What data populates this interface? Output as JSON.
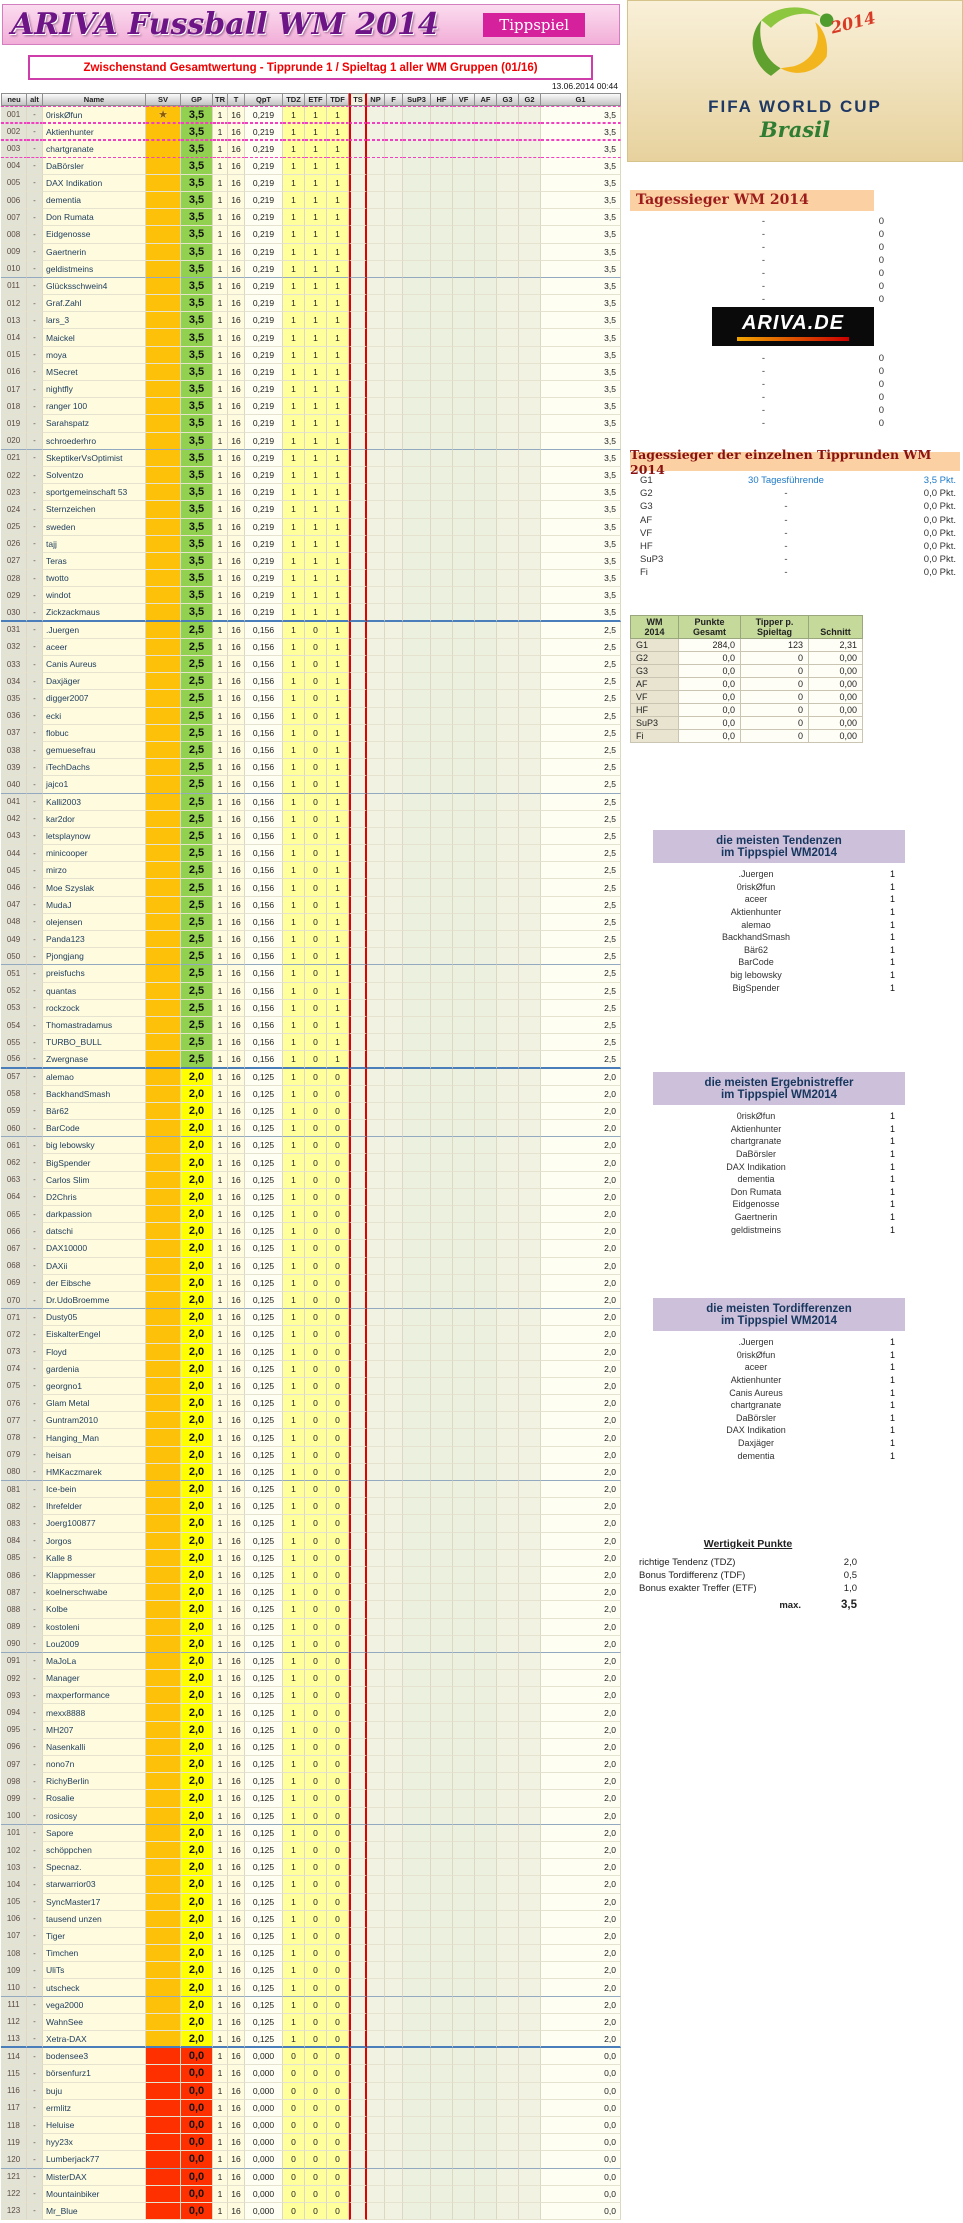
{
  "header": {
    "title": "ARIVA Fussball WM 2014",
    "badge": "Tippspiel",
    "subtitle": "Zwischenstand Gesamtwertung - Tipprunde 1 / Spieltag 1 aller WM Gruppen (01/16)",
    "timestamp": "13.06.2014 00:44"
  },
  "table": {
    "columns": [
      "neu",
      "alt",
      "Name",
      "SV",
      "GP",
      "TR",
      "T",
      "QpT",
      "TDZ",
      "ETF",
      "TDF",
      "TS",
      "NP",
      "F",
      "SuP3",
      "HF",
      "VF",
      "AF",
      "G3",
      "G2",
      "G1"
    ],
    "tiers": {
      "a": {
        "gp": "3,5",
        "tr": "1",
        "t": "16",
        "qpt": "0,219",
        "tdz": "1",
        "etf": "1",
        "tdf": "1",
        "g1": "3,5",
        "color": "#92d050"
      },
      "b": {
        "gp": "2,5",
        "tr": "1",
        "t": "16",
        "qpt": "0,156",
        "tdz": "1",
        "etf": "0",
        "tdf": "1",
        "g1": "2,5",
        "color": "#92d050"
      },
      "c": {
        "gp": "2,0",
        "tr": "1",
        "t": "16",
        "qpt": "0,125",
        "tdz": "1",
        "etf": "0",
        "tdf": "0",
        "g1": "2,0",
        "color": "#ffff00"
      },
      "d": {
        "gp": "0,0",
        "tr": "1",
        "t": "16",
        "qpt": "0,000",
        "tdz": "0",
        "etf": "0",
        "tdf": "0",
        "g1": "0,0",
        "color": "#ff3000"
      }
    },
    "rows": [
      [
        "001",
        "0riskØfun",
        "a",
        1
      ],
      [
        "002",
        "Aktienhunter",
        "a"
      ],
      [
        "003",
        "chartgranate",
        "a"
      ],
      [
        "004",
        "DaBörsler",
        "a"
      ],
      [
        "005",
        "DAX Indikation",
        "a"
      ],
      [
        "006",
        "dementia",
        "a"
      ],
      [
        "007",
        "Don Rumata",
        "a"
      ],
      [
        "008",
        "Eidgenosse",
        "a"
      ],
      [
        "009",
        "Gaertnerin",
        "a"
      ],
      [
        "010",
        "geldistmeins",
        "a"
      ],
      [
        "011",
        "Glücksschwein4",
        "a"
      ],
      [
        "012",
        "Graf.Zahl",
        "a"
      ],
      [
        "013",
        "lars_3",
        "a"
      ],
      [
        "014",
        "Maickel",
        "a"
      ],
      [
        "015",
        "moya",
        "a"
      ],
      [
        "016",
        "MSecret",
        "a"
      ],
      [
        "017",
        "nightfly",
        "a"
      ],
      [
        "018",
        "ranger 100",
        "a"
      ],
      [
        "019",
        "Sarahspatz",
        "a"
      ],
      [
        "020",
        "schroederhro",
        "a"
      ],
      [
        "021",
        "SkeptikerVsOptimist",
        "a"
      ],
      [
        "022",
        "Solventzo",
        "a"
      ],
      [
        "023",
        "sportgemeinschaft 53",
        "a"
      ],
      [
        "024",
        "Sternzeichen",
        "a"
      ],
      [
        "025",
        "sweden",
        "a"
      ],
      [
        "026",
        "tajj",
        "a"
      ],
      [
        "027",
        "Teras",
        "a"
      ],
      [
        "028",
        "twotto",
        "a"
      ],
      [
        "029",
        "windot",
        "a"
      ],
      [
        "030",
        "Zickzackmaus",
        "a"
      ],
      [
        "031",
        ".Juergen",
        "b"
      ],
      [
        "032",
        "aceer",
        "b"
      ],
      [
        "033",
        "Canis Aureus",
        "b"
      ],
      [
        "034",
        "Daxjäger",
        "b"
      ],
      [
        "035",
        "digger2007",
        "b"
      ],
      [
        "036",
        "ecki",
        "b"
      ],
      [
        "037",
        "flobuc",
        "b"
      ],
      [
        "038",
        "gemuesefrau",
        "b"
      ],
      [
        "039",
        "iTechDachs",
        "b"
      ],
      [
        "040",
        "jajco1",
        "b"
      ],
      [
        "041",
        "Kalli2003",
        "b"
      ],
      [
        "042",
        "kar2dor",
        "b"
      ],
      [
        "043",
        "letsplaynow",
        "b"
      ],
      [
        "044",
        "minicooper",
        "b"
      ],
      [
        "045",
        "mirzo",
        "b"
      ],
      [
        "046",
        "Moe Szyslak",
        "b"
      ],
      [
        "047",
        "MudaJ",
        "b"
      ],
      [
        "048",
        "olejensen",
        "b"
      ],
      [
        "049",
        "Panda123",
        "b"
      ],
      [
        "050",
        "Pjongjang",
        "b"
      ],
      [
        "051",
        "preisfuchs",
        "b"
      ],
      [
        "052",
        "quantas",
        "b"
      ],
      [
        "053",
        "rockzock",
        "b"
      ],
      [
        "054",
        "Thomastradamus",
        "b"
      ],
      [
        "055",
        "TURBO_BULL",
        "b"
      ],
      [
        "056",
        "Zwergnase",
        "b"
      ],
      [
        "057",
        "alemao",
        "c"
      ],
      [
        "058",
        "BackhandSmash",
        "c"
      ],
      [
        "059",
        "Bär62",
        "c"
      ],
      [
        "060",
        "BarCode",
        "c"
      ],
      [
        "061",
        "big lebowsky",
        "c"
      ],
      [
        "062",
        "BigSpender",
        "c"
      ],
      [
        "063",
        "Carlos Slim",
        "c"
      ],
      [
        "064",
        "D2Chris",
        "c"
      ],
      [
        "065",
        "darkpassion",
        "c"
      ],
      [
        "066",
        "datschi",
        "c"
      ],
      [
        "067",
        "DAX10000",
        "c"
      ],
      [
        "068",
        "DAXii",
        "c"
      ],
      [
        "069",
        "der Eibsche",
        "c"
      ],
      [
        "070",
        "Dr.UdoBroemme",
        "c"
      ],
      [
        "071",
        "Dusty05",
        "c"
      ],
      [
        "072",
        "EiskalterEngel",
        "c"
      ],
      [
        "073",
        "Floyd",
        "c"
      ],
      [
        "074",
        "gardenia",
        "c"
      ],
      [
        "075",
        "georgno1",
        "c"
      ],
      [
        "076",
        "Glam Metal",
        "c"
      ],
      [
        "077",
        "Guntram2010",
        "c"
      ],
      [
        "078",
        "Hanging_Man",
        "c"
      ],
      [
        "079",
        "heisan",
        "c"
      ],
      [
        "080",
        "HMKaczmarek",
        "c"
      ],
      [
        "081",
        "Ice-bein",
        "c"
      ],
      [
        "082",
        "Ihrefelder",
        "c"
      ],
      [
        "083",
        "Joerg100877",
        "c"
      ],
      [
        "084",
        "Jorgos",
        "c"
      ],
      [
        "085",
        "Kalle 8",
        "c"
      ],
      [
        "086",
        "Klappmesser",
        "c"
      ],
      [
        "087",
        "koelnerschwabe",
        "c"
      ],
      [
        "088",
        "Kolbe",
        "c"
      ],
      [
        "089",
        "kostoleni",
        "c"
      ],
      [
        "090",
        "Lou2009",
        "c"
      ],
      [
        "091",
        "MaJoLa",
        "c"
      ],
      [
        "092",
        "Manager",
        "c"
      ],
      [
        "093",
        "maxperformance",
        "c"
      ],
      [
        "094",
        "mexx8888",
        "c"
      ],
      [
        "095",
        "MH207",
        "c"
      ],
      [
        "096",
        "Nasenkalli",
        "c"
      ],
      [
        "097",
        "nono7n",
        "c"
      ],
      [
        "098",
        "RichyBerlin",
        "c"
      ],
      [
        "099",
        "Rosalie",
        "c"
      ],
      [
        "100",
        "rosicosy",
        "c"
      ],
      [
        "101",
        "Sapore",
        "c"
      ],
      [
        "102",
        "schöppchen",
        "c"
      ],
      [
        "103",
        "Specnaz.",
        "c"
      ],
      [
        "104",
        "starwarrior03",
        "c"
      ],
      [
        "105",
        "SyncMaster17",
        "c"
      ],
      [
        "106",
        "tausend unzen",
        "c"
      ],
      [
        "107",
        "Tiger",
        "c"
      ],
      [
        "108",
        "Timchen",
        "c"
      ],
      [
        "109",
        "UliTs",
        "c"
      ],
      [
        "110",
        "utscheck",
        "c"
      ],
      [
        "111",
        "vega2000",
        "c"
      ],
      [
        "112",
        "WahnSee",
        "c"
      ],
      [
        "113",
        "Xetra-DAX",
        "c"
      ],
      [
        "114",
        "bodensee3",
        "d"
      ],
      [
        "115",
        "börsenfurz1",
        "d"
      ],
      [
        "116",
        "buju",
        "d"
      ],
      [
        "117",
        "ermlitz",
        "d"
      ],
      [
        "118",
        "Heluise",
        "d"
      ],
      [
        "119",
        "hyy23x",
        "d"
      ],
      [
        "120",
        "Lumberjack77",
        "d"
      ],
      [
        "121",
        "MisterDAX",
        "d"
      ],
      [
        "122",
        "Mountainbiker",
        "d"
      ],
      [
        "123",
        "Mr_Blue",
        "d"
      ]
    ]
  },
  "right": {
    "logo": {
      "fifa": "FIFA WORLD CUP",
      "brasil": "Brasil",
      "year": "2014"
    },
    "tagessieger": {
      "title": "Tagessieger WM 2014",
      "dash": "-",
      "zero": "0",
      "rows_before_logo": 7,
      "rows_after_logo": 6
    },
    "ariva": "ARIVA.DE",
    "tipprunden": {
      "title": "Tagessieger der einzelnen Tipprunden WM 2014",
      "rows": [
        {
          "label": "G1",
          "middle": "30 Tagesführende",
          "points": "3,5 Pkt.",
          "highlight": true
        },
        {
          "label": "G2",
          "middle": "-",
          "points": "0,0 Pkt."
        },
        {
          "label": "G3",
          "middle": "-",
          "points": "0,0 Pkt."
        },
        {
          "label": "AF",
          "middle": "-",
          "points": "0,0 Pkt."
        },
        {
          "label": "VF",
          "middle": "-",
          "points": "0,0 Pkt."
        },
        {
          "label": "HF",
          "middle": "-",
          "points": "0,0 Pkt."
        },
        {
          "label": "SuP3",
          "middle": "-",
          "points": "0,0 Pkt."
        },
        {
          "label": "Fi",
          "middle": "-",
          "points": "0,0 Pkt."
        }
      ]
    },
    "punkte": {
      "headers": [
        "WM\n2014",
        "Punkte\nGesamt",
        "Tipper p.\nSpieltag",
        "Schnitt"
      ],
      "rows": [
        [
          "G1",
          "284,0",
          "123",
          "2,31"
        ],
        [
          "G2",
          "0,0",
          "0",
          "0,00"
        ],
        [
          "G3",
          "0,0",
          "0",
          "0,00"
        ],
        [
          "AF",
          "0,0",
          "0",
          "0,00"
        ],
        [
          "VF",
          "0,0",
          "0",
          "0,00"
        ],
        [
          "HF",
          "0,0",
          "0",
          "0,00"
        ],
        [
          "SuP3",
          "0,0",
          "0",
          "0,00"
        ],
        [
          "Fi",
          "0,0",
          "0",
          "0,00"
        ]
      ]
    },
    "tendenzen": {
      "title1": "die meisten Tendenzen",
      "title2": "im Tippspiel WM2014",
      "rows": [
        [
          ".Juergen",
          "1"
        ],
        [
          "0riskØfun",
          "1"
        ],
        [
          "aceer",
          "1"
        ],
        [
          "Aktienhunter",
          "1"
        ],
        [
          "alemao",
          "1"
        ],
        [
          "BackhandSmash",
          "1"
        ],
        [
          "Bär62",
          "1"
        ],
        [
          "BarCode",
          "1"
        ],
        [
          "big lebowsky",
          "1"
        ],
        [
          "BigSpender",
          "1"
        ]
      ]
    },
    "ergebnistreffer": {
      "title1": "die meisten Ergebnistreffer",
      "title2": "im Tippspiel WM2014",
      "rows": [
        [
          "0riskØfun",
          "1"
        ],
        [
          "Aktienhunter",
          "1"
        ],
        [
          "chartgranate",
          "1"
        ],
        [
          "DaBörsler",
          "1"
        ],
        [
          "DAX Indikation",
          "1"
        ],
        [
          "dementia",
          "1"
        ],
        [
          "Don Rumata",
          "1"
        ],
        [
          "Eidgenosse",
          "1"
        ],
        [
          "Gaertnerin",
          "1"
        ],
        [
          "geldistmeins",
          "1"
        ]
      ]
    },
    "tordifferenzen": {
      "title1": "die meisten Tordifferenzen",
      "title2": "im Tippspiel WM2014",
      "rows": [
        [
          ".Juergen",
          "1"
        ],
        [
          "0riskØfun",
          "1"
        ],
        [
          "aceer",
          "1"
        ],
        [
          "Aktienhunter",
          "1"
        ],
        [
          "Canis Aureus",
          "1"
        ],
        [
          "chartgranate",
          "1"
        ],
        [
          "DaBörsler",
          "1"
        ],
        [
          "DAX Indikation",
          "1"
        ],
        [
          "Daxjäger",
          "1"
        ],
        [
          "dementia",
          "1"
        ]
      ]
    },
    "wertigkeit": {
      "title": "Wertigkeit Punkte",
      "rows": [
        [
          "richtige Tendenz (TDZ)",
          "2,0"
        ],
        [
          "Bonus Tordifferenz (TDF)",
          "0,5"
        ],
        [
          "Bonus exakter Treffer (ETF)",
          "1,0"
        ]
      ],
      "max_label": "max.",
      "max_value": "3,5"
    }
  }
}
